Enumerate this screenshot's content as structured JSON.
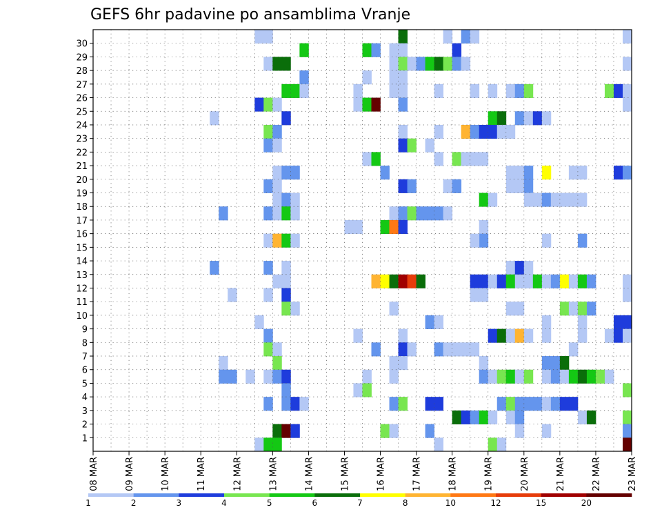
{
  "chart_data": {
    "type": "heatmap",
    "title": "GEFS 6hr padavine po ansamblima Vranje",
    "x_tick_labels": [
      "08 MAR",
      "09 MAR",
      "10 MAR",
      "11 MAR",
      "12 MAR",
      "13 MAR",
      "14 MAR",
      "15 MAR",
      "16 MAR",
      "17 MAR",
      "18 MAR",
      "19 MAR",
      "20 MAR",
      "21 MAR",
      "22 MAR",
      "23 MAR"
    ],
    "y_tick_labels": [
      "1",
      "2",
      "3",
      "4",
      "5",
      "6",
      "7",
      "8",
      "9",
      "10",
      "11",
      "12",
      "13",
      "14",
      "15",
      "16",
      "17",
      "18",
      "19",
      "20",
      "21",
      "22",
      "23",
      "24",
      "25",
      "26",
      "27",
      "28",
      "29",
      "30"
    ],
    "xlim_steps": [
      0,
      60
    ],
    "ylim_members": [
      0,
      30
    ],
    "grid": true,
    "colorbar": {
      "labels": [
        "1",
        "2",
        "3",
        "4",
        "5",
        "6",
        "7",
        "8",
        "10",
        "12",
        "15",
        "20"
      ],
      "colors": [
        "#b4c8f5",
        "#6495ed",
        "#1e3cdc",
        "#78e650",
        "#14c814",
        "#0a6e0a",
        "#ffff00",
        "#ffb432",
        "#ff7814",
        "#e63c0a",
        "#a00000",
        "#640000"
      ]
    },
    "cells": [
      [
        18,
        30,
        1
      ],
      [
        19,
        30,
        1
      ],
      [
        34,
        30,
        6
      ],
      [
        39,
        30,
        1
      ],
      [
        41,
        30,
        2
      ],
      [
        42,
        30,
        1
      ],
      [
        59,
        30,
        1
      ],
      [
        23,
        29,
        5
      ],
      [
        30,
        29,
        5
      ],
      [
        31,
        29,
        2
      ],
      [
        33,
        29,
        1
      ],
      [
        34,
        29,
        1
      ],
      [
        40,
        29,
        3
      ],
      [
        19,
        28,
        1
      ],
      [
        20,
        28,
        6
      ],
      [
        21,
        28,
        6
      ],
      [
        33,
        28,
        1
      ],
      [
        34,
        28,
        4
      ],
      [
        35,
        28,
        1
      ],
      [
        36,
        28,
        2
      ],
      [
        37,
        28,
        5
      ],
      [
        38,
        28,
        6
      ],
      [
        39,
        28,
        4
      ],
      [
        40,
        28,
        2
      ],
      [
        41,
        28,
        1
      ],
      [
        59,
        28,
        1
      ],
      [
        23,
        27,
        2
      ],
      [
        30,
        27,
        1
      ],
      [
        33,
        27,
        1
      ],
      [
        34,
        27,
        1
      ],
      [
        21,
        26,
        5
      ],
      [
        22,
        26,
        5
      ],
      [
        23,
        26,
        1
      ],
      [
        29,
        26,
        1
      ],
      [
        33,
        26,
        1
      ],
      [
        34,
        26,
        1
      ],
      [
        38,
        26,
        1
      ],
      [
        42,
        26,
        1
      ],
      [
        44,
        26,
        1
      ],
      [
        46,
        26,
        1
      ],
      [
        47,
        26,
        2
      ],
      [
        48,
        26,
        4
      ],
      [
        57,
        26,
        4
      ],
      [
        58,
        26,
        3
      ],
      [
        59,
        26,
        1
      ],
      [
        18,
        25,
        3
      ],
      [
        19,
        25,
        4
      ],
      [
        20,
        25,
        1
      ],
      [
        29,
        25,
        1
      ],
      [
        30,
        25,
        5
      ],
      [
        31,
        25,
        12
      ],
      [
        34,
        25,
        2
      ],
      [
        59,
        25,
        1
      ],
      [
        13,
        24,
        1
      ],
      [
        21,
        24,
        3
      ],
      [
        44,
        24,
        5
      ],
      [
        45,
        24,
        6
      ],
      [
        47,
        24,
        2
      ],
      [
        48,
        24,
        1
      ],
      [
        49,
        24,
        3
      ],
      [
        50,
        24,
        1
      ],
      [
        19,
        23,
        4
      ],
      [
        20,
        23,
        2
      ],
      [
        34,
        23,
        1
      ],
      [
        38,
        23,
        1
      ],
      [
        40,
        23,
        15
      ],
      [
        41,
        23,
        8
      ],
      [
        42,
        23,
        2
      ],
      [
        43,
        23,
        3
      ],
      [
        44,
        23,
        3
      ],
      [
        45,
        23,
        1
      ],
      [
        46,
        23,
        1
      ],
      [
        19,
        22,
        2
      ],
      [
        20,
        22,
        1
      ],
      [
        34,
        22,
        3
      ],
      [
        35,
        22,
        4
      ],
      [
        37,
        22,
        1
      ],
      [
        30,
        21,
        1
      ],
      [
        31,
        21,
        5
      ],
      [
        38,
        21,
        1
      ],
      [
        40,
        21,
        4
      ],
      [
        41,
        21,
        1
      ],
      [
        42,
        21,
        1
      ],
      [
        43,
        21,
        1
      ],
      [
        20,
        20,
        1
      ],
      [
        21,
        20,
        2
      ],
      [
        22,
        20,
        2
      ],
      [
        32,
        20,
        2
      ],
      [
        46,
        20,
        1
      ],
      [
        47,
        20,
        1
      ],
      [
        48,
        20,
        2
      ],
      [
        50,
        20,
        7
      ],
      [
        53,
        20,
        1
      ],
      [
        54,
        20,
        1
      ],
      [
        58,
        20,
        3
      ],
      [
        59,
        20,
        2
      ],
      [
        19,
        19,
        2
      ],
      [
        20,
        19,
        1
      ],
      [
        34,
        19,
        3
      ],
      [
        35,
        19,
        2
      ],
      [
        39,
        19,
        1
      ],
      [
        40,
        19,
        2
      ],
      [
        46,
        19,
        1
      ],
      [
        47,
        19,
        1
      ],
      [
        48,
        19,
        2
      ],
      [
        20,
        18,
        1
      ],
      [
        21,
        18,
        2
      ],
      [
        22,
        18,
        1
      ],
      [
        43,
        18,
        5
      ],
      [
        44,
        18,
        1
      ],
      [
        48,
        18,
        1
      ],
      [
        49,
        18,
        1
      ],
      [
        50,
        18,
        2
      ],
      [
        51,
        18,
        1
      ],
      [
        52,
        18,
        1
      ],
      [
        53,
        18,
        1
      ],
      [
        54,
        18,
        1
      ],
      [
        14,
        17,
        2
      ],
      [
        19,
        17,
        2
      ],
      [
        20,
        17,
        1
      ],
      [
        21,
        17,
        5
      ],
      [
        22,
        17,
        1
      ],
      [
        33,
        17,
        1
      ],
      [
        34,
        17,
        2
      ],
      [
        35,
        17,
        4
      ],
      [
        36,
        17,
        2
      ],
      [
        37,
        17,
        2
      ],
      [
        38,
        17,
        2
      ],
      [
        39,
        17,
        1
      ],
      [
        28,
        16,
        1
      ],
      [
        29,
        16,
        1
      ],
      [
        32,
        16,
        5
      ],
      [
        33,
        16,
        9
      ],
      [
        34,
        16,
        3
      ],
      [
        43,
        16,
        1
      ],
      [
        19,
        15,
        1
      ],
      [
        20,
        15,
        8
      ],
      [
        21,
        15,
        5
      ],
      [
        22,
        15,
        1
      ],
      [
        43,
        15,
        2
      ],
      [
        42,
        15,
        1
      ],
      [
        50,
        15,
        1
      ],
      [
        54,
        15,
        2
      ],
      [
        13,
        13,
        2
      ],
      [
        19,
        13,
        2
      ],
      [
        21,
        13,
        1
      ],
      [
        46,
        13,
        1
      ],
      [
        47,
        13,
        3
      ],
      [
        48,
        13,
        1
      ],
      [
        20,
        12,
        1
      ],
      [
        21,
        12,
        1
      ],
      [
        31,
        12,
        8
      ],
      [
        32,
        12,
        7
      ],
      [
        33,
        12,
        6
      ],
      [
        34,
        12,
        11
      ],
      [
        35,
        12,
        10
      ],
      [
        36,
        12,
        6
      ],
      [
        42,
        12,
        3
      ],
      [
        43,
        12,
        3
      ],
      [
        44,
        12,
        1
      ],
      [
        45,
        12,
        3
      ],
      [
        46,
        12,
        5
      ],
      [
        47,
        12,
        1
      ],
      [
        48,
        12,
        1
      ],
      [
        49,
        12,
        5
      ],
      [
        50,
        12,
        1
      ],
      [
        51,
        12,
        2
      ],
      [
        52,
        12,
        7
      ],
      [
        53,
        12,
        1
      ],
      [
        54,
        12,
        5
      ],
      [
        55,
        12,
        2
      ],
      [
        59,
        12,
        1
      ],
      [
        15,
        11,
        1
      ],
      [
        19,
        11,
        1
      ],
      [
        21,
        11,
        3
      ],
      [
        42,
        11,
        1
      ],
      [
        43,
        11,
        1
      ],
      [
        59,
        11,
        1
      ],
      [
        21,
        10,
        4
      ],
      [
        22,
        10,
        1
      ],
      [
        33,
        10,
        1
      ],
      [
        46,
        10,
        1
      ],
      [
        47,
        10,
        1
      ],
      [
        52,
        10,
        4
      ],
      [
        53,
        10,
        1
      ],
      [
        54,
        10,
        4
      ],
      [
        55,
        10,
        2
      ],
      [
        18,
        9,
        1
      ],
      [
        37,
        9,
        2
      ],
      [
        38,
        9,
        1
      ],
      [
        50,
        9,
        1
      ],
      [
        54,
        9,
        1
      ],
      [
        58,
        9,
        3
      ],
      [
        59,
        9,
        3
      ],
      [
        19,
        8,
        2
      ],
      [
        29,
        8,
        1
      ],
      [
        34,
        8,
        1
      ],
      [
        44,
        8,
        3
      ],
      [
        45,
        8,
        6
      ],
      [
        46,
        8,
        1
      ],
      [
        47,
        8,
        8
      ],
      [
        48,
        8,
        1
      ],
      [
        50,
        8,
        1
      ],
      [
        54,
        8,
        1
      ],
      [
        57,
        8,
        1
      ],
      [
        58,
        8,
        3
      ],
      [
        59,
        8,
        1
      ],
      [
        19,
        7,
        4
      ],
      [
        20,
        7,
        1
      ],
      [
        31,
        7,
        2
      ],
      [
        34,
        7,
        3
      ],
      [
        35,
        7,
        1
      ],
      [
        38,
        7,
        2
      ],
      [
        39,
        7,
        1
      ],
      [
        40,
        7,
        1
      ],
      [
        41,
        7,
        1
      ],
      [
        42,
        7,
        1
      ],
      [
        53,
        7,
        1
      ],
      [
        14,
        6,
        1
      ],
      [
        20,
        6,
        4
      ],
      [
        33,
        6,
        1
      ],
      [
        34,
        6,
        1
      ],
      [
        43,
        6,
        1
      ],
      [
        50,
        6,
        2
      ],
      [
        51,
        6,
        2
      ],
      [
        52,
        6,
        6
      ],
      [
        14,
        5,
        2
      ],
      [
        15,
        5,
        2
      ],
      [
        17,
        5,
        1
      ],
      [
        19,
        5,
        1
      ],
      [
        20,
        5,
        2
      ],
      [
        21,
        5,
        3
      ],
      [
        30,
        5,
        1
      ],
      [
        33,
        5,
        1
      ],
      [
        43,
        5,
        2
      ],
      [
        44,
        5,
        1
      ],
      [
        45,
        5,
        4
      ],
      [
        46,
        5,
        5
      ],
      [
        47,
        5,
        1
      ],
      [
        48,
        5,
        4
      ],
      [
        50,
        5,
        1
      ],
      [
        51,
        5,
        2
      ],
      [
        52,
        5,
        1
      ],
      [
        53,
        5,
        5
      ],
      [
        54,
        5,
        6
      ],
      [
        55,
        5,
        5
      ],
      [
        56,
        5,
        4
      ],
      [
        57,
        5,
        1
      ],
      [
        21,
        4,
        2
      ],
      [
        29,
        4,
        1
      ],
      [
        30,
        4,
        4
      ],
      [
        59,
        4,
        4
      ],
      [
        19,
        3,
        2
      ],
      [
        21,
        3,
        2
      ],
      [
        22,
        3,
        3
      ],
      [
        23,
        3,
        1
      ],
      [
        33,
        3,
        2
      ],
      [
        34,
        3,
        4
      ],
      [
        37,
        3,
        3
      ],
      [
        38,
        3,
        3
      ],
      [
        45,
        3,
        2
      ],
      [
        46,
        3,
        4
      ],
      [
        47,
        3,
        2
      ],
      [
        48,
        3,
        2
      ],
      [
        49,
        3,
        2
      ],
      [
        50,
        3,
        1
      ],
      [
        51,
        3,
        2
      ],
      [
        52,
        3,
        3
      ],
      [
        53,
        3,
        3
      ],
      [
        40,
        2,
        6
      ],
      [
        41,
        2,
        3
      ],
      [
        42,
        2,
        2
      ],
      [
        43,
        2,
        5
      ],
      [
        44,
        2,
        1
      ],
      [
        46,
        2,
        1
      ],
      [
        47,
        2,
        2
      ],
      [
        54,
        2,
        1
      ],
      [
        55,
        2,
        6
      ],
      [
        59,
        2,
        4
      ],
      [
        20,
        1,
        6
      ],
      [
        21,
        1,
        12
      ],
      [
        22,
        1,
        3
      ],
      [
        32,
        1,
        4
      ],
      [
        33,
        1,
        1
      ],
      [
        37,
        1,
        2
      ],
      [
        47,
        1,
        1
      ],
      [
        50,
        1,
        1
      ],
      [
        59,
        1,
        2
      ],
      [
        18,
        0,
        1
      ],
      [
        19,
        0,
        5
      ],
      [
        20,
        0,
        5
      ],
      [
        38,
        0,
        1
      ],
      [
        44,
        0,
        4
      ],
      [
        45,
        0,
        1
      ],
      [
        59,
        0,
        12
      ]
    ]
  }
}
